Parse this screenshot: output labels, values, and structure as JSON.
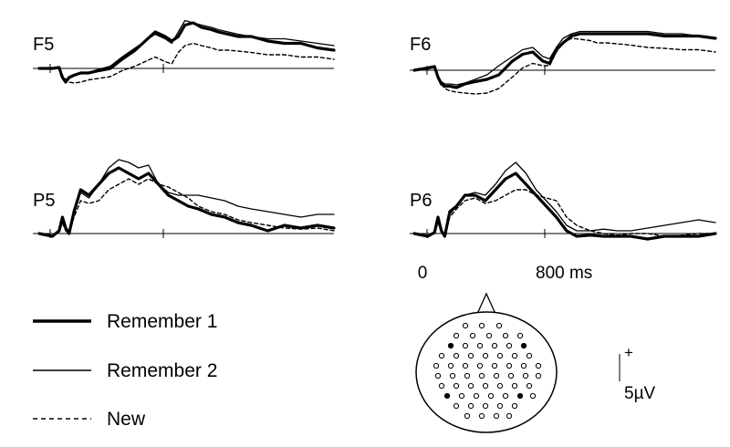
{
  "chart_data": {
    "type": "line",
    "title": "",
    "time_axis": {
      "tick_labels": [
        "0",
        "800 ms"
      ],
      "xlim": [
        -80,
        1700
      ],
      "ticks_ms": [
        0,
        800
      ]
    },
    "scale_bar": {
      "sign": "+",
      "label": "5µV",
      "value_uv": 5
    },
    "y_direction": "positive up",
    "y_range_uv": [
      -4,
      12
    ],
    "legend": [
      {
        "name": "Remember 1",
        "style": "thick-solid"
      },
      {
        "name": "Remember 2",
        "style": "thin-solid"
      },
      {
        "name": "New",
        "style": "dashed"
      }
    ],
    "series_style": {
      "Remember 1": {
        "color": "#000000",
        "width": 3.2,
        "dash": ""
      },
      "Remember 2": {
        "color": "#000000",
        "width": 1.3,
        "dash": ""
      },
      "New": {
        "color": "#000000",
        "width": 1.4,
        "dash": "4 3"
      }
    },
    "panels": [
      {
        "electrode": "F5",
        "x_ms": [
          -80,
          0,
          40,
          60,
          80,
          100,
          130,
          170,
          220,
          280,
          350,
          420,
          500,
          560,
          620,
          680,
          720,
          760,
          800,
          850,
          900,
          960,
          1000,
          1060,
          1120,
          1200,
          1300,
          1400,
          1500,
          1600,
          1700
        ],
        "series": [
          {
            "name": "Remember 1",
            "values": [
              0,
              0,
              0.2,
              -2,
              -3,
              -2,
              -1.5,
              -1,
              -1,
              -0.5,
              0,
              2,
              4,
              6,
              8,
              7,
              6,
              7,
              9.5,
              10,
              9,
              8.5,
              8,
              7.5,
              7,
              7,
              6,
              5.5,
              5.5,
              4.5,
              4
            ]
          },
          {
            "name": "Remember 2",
            "values": [
              0,
              0,
              0.2,
              -1.8,
              -2.5,
              -1.8,
              -1.3,
              -1,
              -0.8,
              -0.2,
              0.5,
              2.5,
              4.5,
              6,
              7.5,
              6.5,
              5.5,
              8,
              10.5,
              10,
              9.5,
              9,
              8.5,
              8,
              7.5,
              7,
              6.5,
              6.5,
              6,
              5.5,
              5
            ]
          },
          {
            "name": "New",
            "values": [
              0,
              0,
              0.1,
              -1.5,
              -2.5,
              -3,
              -3.2,
              -3,
              -2.5,
              -2.2,
              -1.8,
              -0.5,
              0.5,
              1.5,
              2.5,
              1.5,
              1,
              3.5,
              5,
              5.5,
              5,
              4.5,
              4,
              4,
              3.8,
              3.5,
              3,
              3,
              2.5,
              2.5,
              2
            ]
          }
        ]
      },
      {
        "electrode": "F6",
        "x_ms": [
          -80,
          0,
          40,
          60,
          80,
          100,
          130,
          170,
          220,
          280,
          350,
          420,
          500,
          560,
          620,
          680,
          720,
          760,
          800,
          850,
          900,
          960,
          1000,
          1060,
          1120,
          1200,
          1300,
          1400,
          1500,
          1600,
          1700
        ],
        "series": [
          {
            "name": "Remember 1",
            "values": [
              0,
              0.5,
              0.8,
              -1.5,
              -3,
              -3.5,
              -3.5,
              -3.8,
              -3,
              -2.5,
              -2,
              -1,
              2,
              3.5,
              4,
              2,
              1.5,
              4.5,
              6,
              7.5,
              8,
              8,
              8,
              8,
              8,
              8,
              8,
              7.5,
              7.5,
              7.5,
              7
            ]
          },
          {
            "name": "Remember 2",
            "values": [
              0,
              0.5,
              0.6,
              -1.5,
              -2.5,
              -3,
              -3,
              -3.2,
              -2.8,
              -2,
              -1,
              1,
              3,
              4.5,
              5,
              3,
              2.5,
              5,
              7,
              8,
              8.5,
              8.5,
              8.5,
              8.5,
              8.5,
              8.5,
              8.5,
              8,
              8,
              7.5,
              7
            ]
          },
          {
            "name": "New",
            "values": [
              0,
              0.3,
              0.5,
              -1.2,
              -3,
              -4,
              -4.5,
              -4.8,
              -5,
              -5.2,
              -5,
              -4,
              -1.5,
              0.5,
              1.5,
              1,
              1,
              4,
              6,
              7,
              6.8,
              6.5,
              6,
              6,
              5.8,
              5.5,
              5,
              4.8,
              4.5,
              4.5,
              4
            ]
          }
        ]
      },
      {
        "electrode": "P5",
        "x_ms": [
          -80,
          0,
          40,
          60,
          80,
          100,
          130,
          170,
          220,
          280,
          340,
          400,
          460,
          520,
          580,
          640,
          700,
          760,
          820,
          880,
          960,
          1040,
          1120,
          1200,
          1300,
          1400,
          1500,
          1600,
          1700
        ],
        "series": [
          {
            "name": "Remember 1",
            "values": [
              0,
              -0.5,
              0.5,
              3,
              1,
              0,
              4,
              8,
              7,
              9,
              11,
              12,
              11,
              10,
              11,
              9,
              7,
              6,
              5,
              4.5,
              3.5,
              3,
              2,
              1.5,
              0.5,
              1.5,
              1,
              1.5,
              1
            ]
          },
          {
            "name": "Remember 2",
            "values": [
              0,
              -0.5,
              0.5,
              2.5,
              1,
              0,
              4,
              7.5,
              6.5,
              9,
              12,
              13.5,
              13,
              12,
              12.5,
              9,
              7.5,
              7,
              7,
              7,
              6.5,
              6,
              5,
              4.5,
              4,
              3.5,
              3,
              3.5,
              3.5
            ]
          },
          {
            "name": "New",
            "values": [
              0,
              -0.5,
              0.3,
              2,
              0.5,
              0,
              3,
              6,
              5.5,
              6,
              8,
              9,
              10,
              9,
              10,
              9,
              8.5,
              7.5,
              6.5,
              5,
              4,
              3.5,
              2.5,
              2,
              1.5,
              1,
              0.8,
              1,
              0.5
            ]
          }
        ]
      },
      {
        "electrode": "P6",
        "x_ms": [
          -80,
          0,
          40,
          60,
          80,
          100,
          130,
          170,
          220,
          280,
          340,
          400,
          460,
          520,
          580,
          640,
          700,
          760,
          820,
          880,
          960,
          1040,
          1120,
          1200,
          1300,
          1400,
          1500,
          1600,
          1700
        ],
        "series": [
          {
            "name": "Remember 1",
            "values": [
              0,
              -0.5,
              0.2,
              3,
              0.5,
              -0.5,
              4,
              5,
              7,
              7,
              6,
              8,
              10,
              11,
              9,
              7,
              5,
              3,
              0.5,
              -0.5,
              -0.3,
              -0.5,
              -0.5,
              -0.5,
              -1,
              -0.5,
              -0.5,
              -0.5,
              0
            ]
          },
          {
            "name": "Remember 2",
            "values": [
              0,
              -0.5,
              0.2,
              2.5,
              0.5,
              -0.5,
              3.5,
              5,
              7,
              7.5,
              7,
              9,
              11.5,
              13,
              11,
              8,
              6,
              4,
              1.5,
              0.5,
              0.5,
              0.8,
              0.5,
              0.5,
              1,
              1.5,
              2,
              2.5,
              2
            ]
          },
          {
            "name": "New",
            "values": [
              0,
              -0.5,
              0.1,
              2,
              0.3,
              -0.5,
              3,
              4.5,
              6,
              6.5,
              5.5,
              6,
              7,
              8,
              8,
              7,
              6.5,
              6,
              3,
              1.5,
              0.5,
              0,
              -0.3,
              0,
              0,
              -0.5,
              -0.3,
              0,
              0
            ]
          }
        ]
      }
    ],
    "montage": {
      "nose_marker": "triangle"
    }
  }
}
